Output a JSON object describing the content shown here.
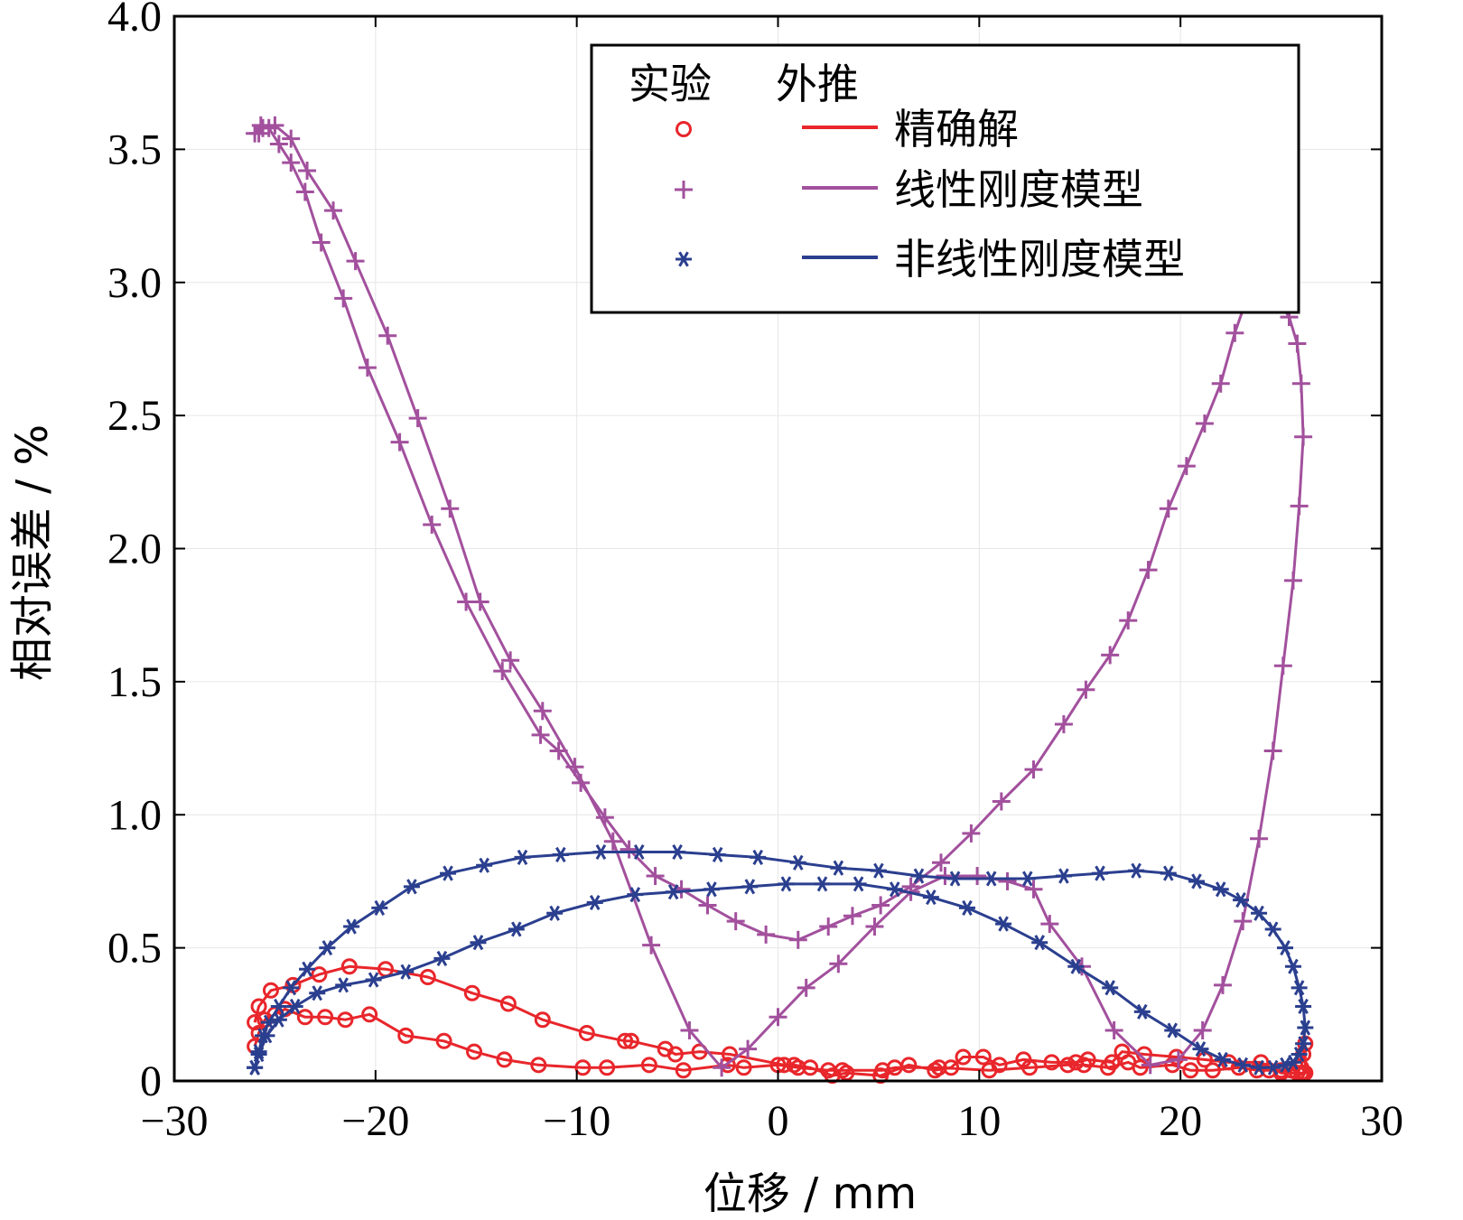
{
  "chart_data": {
    "type": "line",
    "xlabel": "位移 / mm",
    "ylabel": "相对误差 / %",
    "xlim": [
      -30,
      30
    ],
    "ylim": [
      0,
      4.0
    ],
    "xticks": [
      -30,
      -20,
      -10,
      0,
      10,
      20,
      30
    ],
    "xtick_labels": [
      "−30",
      "−20",
      "−10",
      "0",
      "10",
      "20",
      "30"
    ],
    "yticks": [
      0,
      0.5,
      1.0,
      1.5,
      2.0,
      2.5,
      3.0,
      3.5,
      4.0
    ],
    "ytick_labels": [
      "0",
      "0.5",
      "1.0",
      "1.5",
      "2.0",
      "2.5",
      "3.0",
      "3.5",
      "4.0"
    ],
    "grid": true,
    "legend": {
      "placement": "top-right",
      "header_experiment": "实验",
      "header_extrapolation": "外推"
    },
    "series": [
      {
        "name": "精确解",
        "color": "#e8262b",
        "marker": "circle",
        "x": [
          -26,
          -25.8,
          -25.5,
          -25,
          -24.5,
          -23.5,
          -22.5,
          -21.5,
          -20.3,
          -18.5,
          -16.6,
          -15.1,
          -13.6,
          -11.9,
          -9.7,
          -8.5,
          -6.4,
          -4.7,
          -2.5,
          -1.7,
          0,
          1,
          2.5,
          3.2,
          5.2,
          5.8,
          8,
          10.5,
          12.5,
          14.4,
          15.2,
          16.4,
          17.4,
          18,
          19.6,
          20.5,
          21.6,
          22.9,
          23.8,
          24.4,
          25,
          25.5,
          26,
          26.1,
          26.2,
          26.2,
          26.1,
          26,
          25.8,
          25,
          24,
          22.4,
          21.2,
          19.8,
          18.2,
          17.1,
          16.6,
          15.4,
          14.8,
          13.6,
          12.2,
          11,
          10.2,
          9.2,
          8.6,
          7.8,
          6.5,
          5.1,
          3.4,
          2.7,
          1.6,
          0.8,
          0.3,
          -2.4,
          -3.9,
          -5.1,
          -5.6,
          -7.3,
          -7.6,
          -9.5,
          -11.7,
          -13.4,
          -15.2,
          -17.4,
          -19.5,
          -21.3,
          -22.8,
          -24.1,
          -25.2,
          -25.8,
          -26
        ],
        "y": [
          0.13,
          0.18,
          0.23,
          0.25,
          0.27,
          0.24,
          0.24,
          0.23,
          0.25,
          0.17,
          0.15,
          0.11,
          0.08,
          0.06,
          0.05,
          0.05,
          0.06,
          0.04,
          0.06,
          0.05,
          0.06,
          0.05,
          0.04,
          0.04,
          0.04,
          0.05,
          0.05,
          0.04,
          0.05,
          0.06,
          0.06,
          0.05,
          0.07,
          0.05,
          0.06,
          0.04,
          0.04,
          0.05,
          0.04,
          0.04,
          0.04,
          0.04,
          0.05,
          0.1,
          0.14,
          0.03,
          0.03,
          0.03,
          0.03,
          0.03,
          0.07,
          0.07,
          0.08,
          0.09,
          0.1,
          0.11,
          0.07,
          0.08,
          0.07,
          0.07,
          0.08,
          0.06,
          0.09,
          0.09,
          0.05,
          0.04,
          0.06,
          0.02,
          0.03,
          0.02,
          0.05,
          0.06,
          0.06,
          0.1,
          0.11,
          0.1,
          0.12,
          0.15,
          0.15,
          0.18,
          0.23,
          0.29,
          0.33,
          0.39,
          0.42,
          0.43,
          0.4,
          0.36,
          0.34,
          0.28,
          0.22
        ]
      },
      {
        "name": "线性刚度模型",
        "color": "#a2509d",
        "marker": "plus",
        "x": [
          -26,
          -25.7,
          -25.3,
          -24.8,
          -24.2,
          -23.5,
          -22.7,
          -21.6,
          -20.4,
          -18.8,
          -17.2,
          -15.5,
          -13.7,
          -11.8,
          -10.9,
          -9.8,
          -8.6,
          -7.4,
          -6.1,
          -4.8,
          -3.5,
          -2.1,
          -0.6,
          1,
          2.5,
          3.7,
          5.1,
          6.6,
          8.1,
          9.6,
          11.1,
          12.7,
          14.2,
          15.3,
          16.5,
          17.4,
          18.4,
          19.4,
          20.3,
          21.2,
          22,
          22.7,
          23.3,
          24.2,
          24.8,
          25.4,
          25.8,
          26,
          26.1,
          25.9,
          25.6,
          25.1,
          24.6,
          23.9,
          23.1,
          22.1,
          21.1,
          19.9,
          18.5,
          16.7,
          15.1,
          13.5,
          12.7,
          11.4,
          9.9,
          8.3,
          6.6,
          4.8,
          3,
          1.4,
          0,
          -1.5,
          -2.8,
          -4.4,
          -6.3,
          -8.2,
          -10.1,
          -11.7,
          -13.3,
          -14.8,
          -16.3,
          -17.9,
          -19.4,
          -21,
          -22.1,
          -23.4,
          -24.2,
          -25,
          -25.6,
          -25.8
        ],
        "y": [
          3.56,
          3.59,
          3.58,
          3.52,
          3.45,
          3.34,
          3.15,
          2.94,
          2.68,
          2.4,
          2.09,
          1.8,
          1.54,
          1.3,
          1.24,
          1.12,
          0.99,
          0.87,
          0.77,
          0.72,
          0.66,
          0.6,
          0.55,
          0.53,
          0.58,
          0.62,
          0.66,
          0.73,
          0.82,
          0.93,
          1.05,
          1.17,
          1.34,
          1.47,
          1.6,
          1.73,
          1.92,
          2.15,
          2.31,
          2.47,
          2.62,
          2.81,
          2.94,
          2.96,
          2.94,
          2.87,
          2.77,
          2.62,
          2.42,
          2.16,
          1.88,
          1.56,
          1.24,
          0.91,
          0.6,
          0.36,
          0.19,
          0.08,
          0.06,
          0.19,
          0.43,
          0.59,
          0.72,
          0.75,
          0.77,
          0.77,
          0.71,
          0.58,
          0.44,
          0.35,
          0.24,
          0.12,
          0.05,
          0.19,
          0.51,
          0.9,
          1.18,
          1.39,
          1.58,
          1.8,
          2.15,
          2.49,
          2.8,
          3.08,
          3.27,
          3.42,
          3.54,
          3.59,
          3.58,
          3.56
        ]
      },
      {
        "name": "非线性刚度模型",
        "color": "#2b3f8f",
        "marker": "asterisk",
        "x": [
          -26,
          -25.8,
          -25.6,
          -25.3,
          -24.8,
          -24.2,
          -23.4,
          -22.4,
          -21.2,
          -19.8,
          -18.2,
          -16.4,
          -14.6,
          -12.7,
          -10.8,
          -8.8,
          -6.9,
          -5,
          -3,
          -1,
          1,
          3,
          5,
          7,
          8.8,
          10.6,
          12.4,
          14.2,
          16,
          17.8,
          19.4,
          20.8,
          22,
          23,
          23.9,
          24.6,
          25.2,
          25.6,
          25.9,
          26.1,
          26.2,
          26.1,
          25.9,
          25.6,
          25.2,
          24.6,
          23.9,
          23.1,
          22.1,
          21,
          19.6,
          18.1,
          16.5,
          14.8,
          13,
          11.2,
          9.4,
          7.6,
          5.8,
          4,
          2.2,
          0.4,
          -1.4,
          -3.3,
          -5.2,
          -7.1,
          -9.1,
          -11.1,
          -13,
          -14.9,
          -16.7,
          -18.5,
          -20.1,
          -21.6,
          -22.9,
          -24,
          -24.8,
          -25.4,
          -25.8,
          -26
        ],
        "y": [
          0.05,
          0.11,
          0.17,
          0.22,
          0.28,
          0.35,
          0.42,
          0.5,
          0.58,
          0.65,
          0.73,
          0.78,
          0.81,
          0.84,
          0.85,
          0.86,
          0.86,
          0.86,
          0.85,
          0.84,
          0.82,
          0.8,
          0.79,
          0.77,
          0.76,
          0.76,
          0.76,
          0.77,
          0.78,
          0.79,
          0.78,
          0.75,
          0.72,
          0.68,
          0.63,
          0.57,
          0.5,
          0.43,
          0.35,
          0.28,
          0.2,
          0.14,
          0.1,
          0.07,
          0.06,
          0.05,
          0.05,
          0.06,
          0.08,
          0.12,
          0.19,
          0.26,
          0.35,
          0.43,
          0.52,
          0.59,
          0.65,
          0.69,
          0.72,
          0.74,
          0.74,
          0.74,
          0.73,
          0.72,
          0.71,
          0.7,
          0.67,
          0.63,
          0.57,
          0.52,
          0.46,
          0.41,
          0.38,
          0.36,
          0.33,
          0.28,
          0.23,
          0.17,
          0.1,
          0.05
        ]
      }
    ]
  }
}
